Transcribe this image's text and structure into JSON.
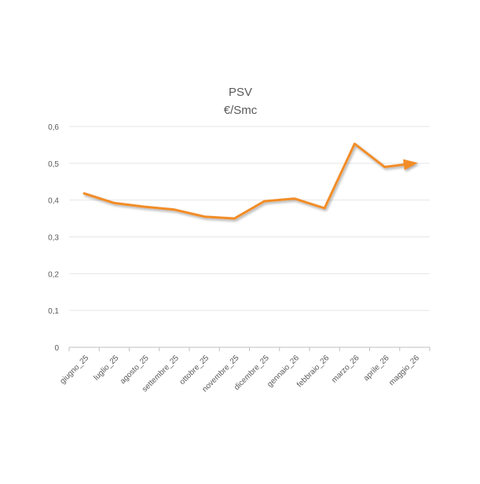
{
  "chart_data": {
    "type": "line",
    "title": "PSV",
    "subtitle": "€/Smc",
    "xlabel": "",
    "ylabel": "",
    "categories": [
      "giugno_25",
      "luglio_25",
      "agosto_25",
      "settembre_25",
      "ottobre_25",
      "novembre_25",
      "dicembre_25",
      "gennaio_26",
      "febbraio_26",
      "marzo_26",
      "aprile_26",
      "maggio_26"
    ],
    "series": [
      {
        "values": [
          0.418,
          0.392,
          0.382,
          0.374,
          0.355,
          0.35,
          0.397,
          0.404,
          0.378,
          0.553,
          0.49,
          0.5
        ]
      }
    ],
    "y_ticks": [
      "0",
      "0,1",
      "0,2",
      "0,3",
      "0,4",
      "0,5",
      "0,6"
    ],
    "ylim": [
      0,
      0.6
    ],
    "grid": true,
    "legend": "none",
    "line_end_marker": "arrow",
    "colors": {
      "line": "#F28C28",
      "grid": "#E6E6E6",
      "axis": "#BFBFBF",
      "text": "#595959"
    }
  }
}
